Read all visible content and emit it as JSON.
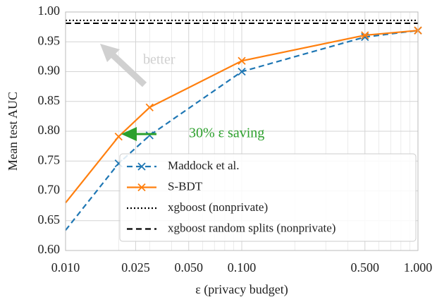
{
  "chart_data": {
    "type": "line",
    "xlabel": "ε (privacy budget)",
    "ylabel": "Mean test AUC",
    "xscale": "log",
    "grid": true,
    "xlim": [
      0.01,
      1.0
    ],
    "ylim": [
      0.6,
      1.0
    ],
    "xticks": [
      {
        "value": 0.01,
        "label": "0.010"
      },
      {
        "value": 0.025,
        "label": "0.025"
      },
      {
        "value": 0.05,
        "label": "0.050"
      },
      {
        "value": 0.1,
        "label": "0.100"
      },
      {
        "value": 0.5,
        "label": "0.500"
      },
      {
        "value": 1.0,
        "label": "1.000"
      }
    ],
    "yticks": [
      {
        "value": 0.6,
        "label": "0.60"
      },
      {
        "value": 0.65,
        "label": "0.65"
      },
      {
        "value": 0.7,
        "label": "0.70"
      },
      {
        "value": 0.75,
        "label": "0.75"
      },
      {
        "value": 0.8,
        "label": "0.80"
      },
      {
        "value": 0.85,
        "label": "0.85"
      },
      {
        "value": 0.9,
        "label": "0.90"
      },
      {
        "value": 0.95,
        "label": "0.95"
      },
      {
        "value": 1.0,
        "label": "1.00"
      }
    ],
    "xminor": [
      0.02,
      0.03,
      0.04,
      0.06,
      0.07,
      0.08,
      0.09,
      0.2,
      0.3,
      0.4,
      0.6,
      0.7,
      0.8,
      0.9
    ],
    "x": [
      0.01,
      0.02,
      0.03,
      0.1,
      0.5,
      1.0
    ],
    "series": [
      {
        "name": "Maddock et al.",
        "color": "#1f77b4",
        "dash": "dashed",
        "values": [
          0.634,
          0.746,
          0.793,
          0.9,
          0.958,
          0.969
        ]
      },
      {
        "name": "S-BDT",
        "color": "#ff7f0e",
        "dash": "solid",
        "values": [
          0.68,
          0.791,
          0.84,
          0.918,
          0.961,
          0.969
        ]
      }
    ],
    "reference_lines": [
      {
        "name": "xgboost (nonprivate)",
        "value": 0.986,
        "style": "dotted"
      },
      {
        "name": "xgboost random splits (nonprivate)",
        "value": 0.981,
        "style": "dashed"
      }
    ],
    "annotations": [
      {
        "text": "better",
        "color": "#d0d0d0"
      },
      {
        "text": "30% ε saving",
        "color": "#2ca02c"
      }
    ]
  }
}
